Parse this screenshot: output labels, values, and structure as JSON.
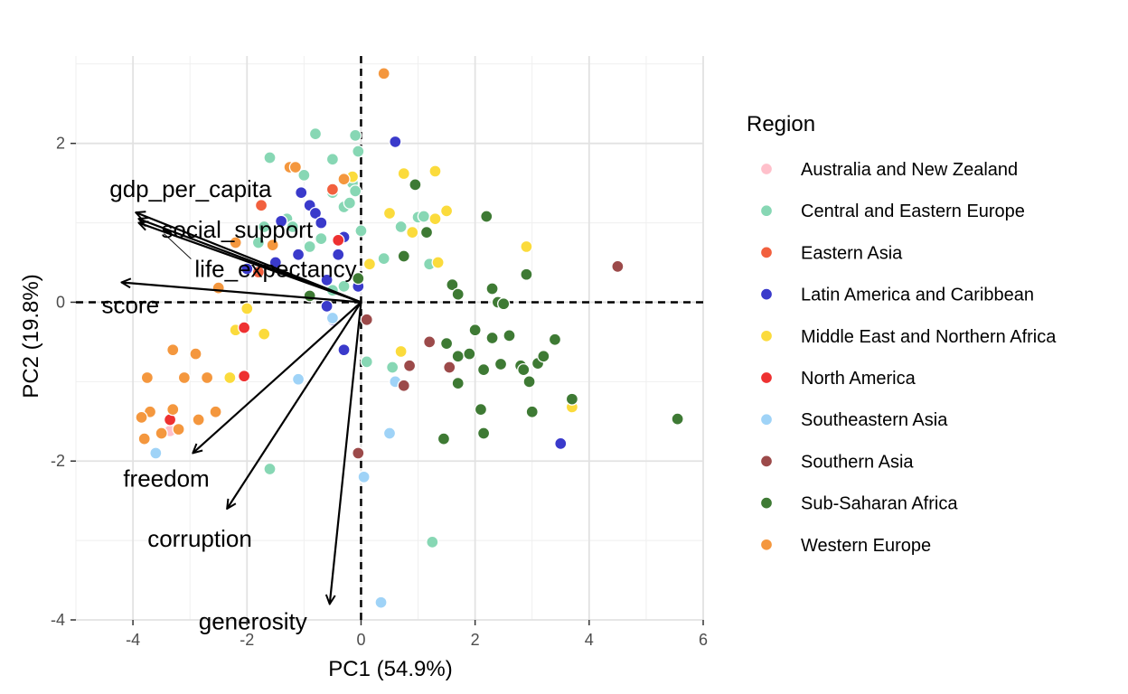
{
  "chart_data": {
    "type": "scatter",
    "title": "",
    "xlabel": "PC1 (54.9%)",
    "ylabel": "PC2 (19.8%)",
    "xlim": [
      -5.0,
      6.0
    ],
    "ylim": [
      -4.0,
      3.1
    ],
    "x_ticks": [
      -4,
      -2,
      0,
      2,
      4,
      6
    ],
    "x_tick_labels": [
      "-4",
      "-2",
      "0",
      "2",
      "4",
      "6"
    ],
    "y_ticks": [
      -4,
      -2,
      0,
      2
    ],
    "y_tick_labels": [
      "-4",
      "-2",
      "0",
      "2"
    ],
    "grid": true,
    "reference_lines": {
      "x": 0,
      "y": 0,
      "style": "dashed"
    },
    "legend": {
      "title": "Region",
      "placement": "right",
      "entries": [
        {
          "name": "Australia and New Zealand",
          "color": "#FFC0CB"
        },
        {
          "name": "Central and Eastern Europe",
          "color": "#87D7B4"
        },
        {
          "name": "Eastern Asia",
          "color": "#F2603E"
        },
        {
          "name": "Latin America and Caribbean",
          "color": "#3A3ACB"
        },
        {
          "name": "Middle East and Northern Africa",
          "color": "#FBDB3C"
        },
        {
          "name": "North America",
          "color": "#EE3131"
        },
        {
          "name": "Southeastern Asia",
          "color": "#9FD3F7"
        },
        {
          "name": "Southern Asia",
          "color": "#9C4A4A"
        },
        {
          "name": "Sub-Saharan Africa",
          "color": "#3E7A34"
        },
        {
          "name": "Western Europe",
          "color": "#F4973E"
        }
      ]
    },
    "series": [
      {
        "name": "Australia and New Zealand",
        "points": [
          [
            -3.3,
            -1.6
          ],
          [
            -3.35,
            -1.62
          ]
        ]
      },
      {
        "name": "Central and Eastern Europe",
        "points": [
          [
            -1.6,
            1.82
          ],
          [
            -1.3,
            1.05
          ],
          [
            -1.2,
            0.95
          ],
          [
            -1.0,
            1.6
          ],
          [
            -0.9,
            0.7
          ],
          [
            -0.8,
            2.12
          ],
          [
            -0.5,
            1.8
          ],
          [
            -0.5,
            1.38
          ],
          [
            -0.3,
            1.2
          ],
          [
            -0.2,
            1.25
          ],
          [
            -0.15,
            1.5
          ],
          [
            -0.1,
            2.1
          ],
          [
            -0.05,
            1.9
          ],
          [
            -0.1,
            1.4
          ],
          [
            0.0,
            0.9
          ],
          [
            -0.7,
            0.8
          ],
          [
            -1.7,
            0.95
          ],
          [
            -1.8,
            0.75
          ],
          [
            -0.3,
            0.2
          ],
          [
            -0.5,
            0.15
          ],
          [
            0.4,
            0.55
          ],
          [
            0.7,
            0.95
          ],
          [
            1.0,
            1.07
          ],
          [
            1.1,
            1.08
          ],
          [
            1.2,
            0.48
          ],
          [
            0.1,
            -0.75
          ],
          [
            0.55,
            -0.82
          ],
          [
            -1.6,
            -2.1
          ],
          [
            1.25,
            -3.02
          ]
        ]
      },
      {
        "name": "Eastern Asia",
        "points": [
          [
            -1.75,
            1.22
          ],
          [
            -1.2,
            1.7
          ],
          [
            -0.5,
            1.42
          ],
          [
            -1.8,
            0.38
          ]
        ]
      },
      {
        "name": "Latin America and Caribbean",
        "points": [
          [
            -1.05,
            1.38
          ],
          [
            -0.9,
            1.22
          ],
          [
            -0.8,
            1.12
          ],
          [
            -0.7,
            1.0
          ],
          [
            -1.4,
            1.02
          ],
          [
            -0.3,
            0.82
          ],
          [
            -2.0,
            0.42
          ],
          [
            -1.5,
            0.5
          ],
          [
            -1.1,
            0.6
          ],
          [
            -0.4,
            0.6
          ],
          [
            -0.6,
            0.28
          ],
          [
            -0.6,
            -0.05
          ],
          [
            -0.5,
            -0.22
          ],
          [
            -0.3,
            -0.6
          ],
          [
            0.6,
            2.02
          ],
          [
            3.5,
            -1.78
          ],
          [
            -0.05,
            0.2
          ]
        ]
      },
      {
        "name": "Middle East and Northern Africa",
        "points": [
          [
            0.75,
            1.62
          ],
          [
            1.3,
            1.65
          ],
          [
            1.5,
            1.15
          ],
          [
            0.5,
            1.12
          ],
          [
            1.3,
            1.05
          ],
          [
            0.9,
            0.88
          ],
          [
            1.35,
            0.5
          ],
          [
            0.15,
            0.48
          ],
          [
            -0.15,
            1.58
          ],
          [
            2.9,
            0.7
          ],
          [
            0.7,
            -0.62
          ],
          [
            3.7,
            -1.32
          ],
          [
            -2.2,
            -0.35
          ],
          [
            -1.7,
            -0.4
          ],
          [
            -2.3,
            -0.95
          ],
          [
            -2.0,
            -0.08
          ]
        ]
      },
      {
        "name": "North America",
        "points": [
          [
            -2.05,
            -0.32
          ],
          [
            -2.05,
            -0.93
          ],
          [
            -3.35,
            -1.48
          ],
          [
            -0.4,
            0.78
          ]
        ]
      },
      {
        "name": "Southeastern Asia",
        "points": [
          [
            -1.1,
            -0.97
          ],
          [
            0.6,
            -1.0
          ],
          [
            0.5,
            -1.65
          ],
          [
            0.05,
            -2.2
          ],
          [
            0.35,
            -3.78
          ],
          [
            -3.6,
            -1.9
          ],
          [
            -0.5,
            -0.2
          ]
        ]
      },
      {
        "name": "Southern Asia",
        "points": [
          [
            0.1,
            -0.22
          ],
          [
            1.2,
            -0.5
          ],
          [
            0.85,
            -0.8
          ],
          [
            0.75,
            -1.05
          ],
          [
            1.55,
            -0.82
          ],
          [
            -0.05,
            -1.9
          ],
          [
            4.5,
            0.45
          ]
        ]
      },
      {
        "name": "Sub-Saharan Africa",
        "points": [
          [
            0.95,
            1.48
          ],
          [
            2.2,
            1.08
          ],
          [
            1.15,
            0.88
          ],
          [
            0.75,
            0.58
          ],
          [
            1.6,
            0.22
          ],
          [
            1.7,
            0.1
          ],
          [
            2.3,
            0.17
          ],
          [
            2.4,
            0.0
          ],
          [
            2.5,
            -0.02
          ],
          [
            2.9,
            0.35
          ],
          [
            2.0,
            -0.35
          ],
          [
            2.3,
            -0.45
          ],
          [
            2.6,
            -0.42
          ],
          [
            1.5,
            -0.52
          ],
          [
            1.7,
            -0.68
          ],
          [
            1.9,
            -0.65
          ],
          [
            2.15,
            -0.85
          ],
          [
            2.45,
            -0.78
          ],
          [
            2.8,
            -0.8
          ],
          [
            2.85,
            -0.85
          ],
          [
            3.1,
            -0.77
          ],
          [
            3.2,
            -0.68
          ],
          [
            3.4,
            -0.47
          ],
          [
            2.95,
            -1.0
          ],
          [
            3.7,
            -1.22
          ],
          [
            3.0,
            -1.38
          ],
          [
            1.7,
            -1.02
          ],
          [
            2.1,
            -1.35
          ],
          [
            2.15,
            -1.65
          ],
          [
            1.45,
            -1.72
          ],
          [
            5.55,
            -1.47
          ],
          [
            -0.9,
            0.08
          ],
          [
            -0.05,
            0.3
          ]
        ]
      },
      {
        "name": "Western Europe",
        "points": [
          [
            0.4,
            2.88
          ],
          [
            -1.25,
            1.7
          ],
          [
            -1.15,
            1.7
          ],
          [
            -2.2,
            0.75
          ],
          [
            -1.55,
            0.72
          ],
          [
            -2.5,
            0.18
          ],
          [
            -3.3,
            -0.6
          ],
          [
            -2.9,
            -0.65
          ],
          [
            -3.75,
            -0.95
          ],
          [
            -3.1,
            -0.95
          ],
          [
            -2.7,
            -0.95
          ],
          [
            -3.3,
            -1.35
          ],
          [
            -3.7,
            -1.38
          ],
          [
            -2.55,
            -1.38
          ],
          [
            -3.85,
            -1.45
          ],
          [
            -2.85,
            -1.48
          ],
          [
            -3.2,
            -1.6
          ],
          [
            -3.5,
            -1.65
          ],
          [
            -3.8,
            -1.72
          ],
          [
            -0.3,
            1.55
          ]
        ]
      }
    ],
    "loadings": [
      {
        "name": "gdp_per_capita",
        "x": -3.95,
        "y": 1.13
      },
      {
        "name": "social_support",
        "x": -3.9,
        "y": 1.05
      },
      {
        "name": "life_expectancy",
        "x": -3.9,
        "y": 1.0
      },
      {
        "name": "score",
        "x": -4.2,
        "y": 0.25
      },
      {
        "name": "freedom",
        "x": -2.95,
        "y": -1.9
      },
      {
        "name": "corruption",
        "x": -2.35,
        "y": -2.6
      },
      {
        "name": "generosity",
        "x": -0.55,
        "y": -3.8
      }
    ]
  }
}
